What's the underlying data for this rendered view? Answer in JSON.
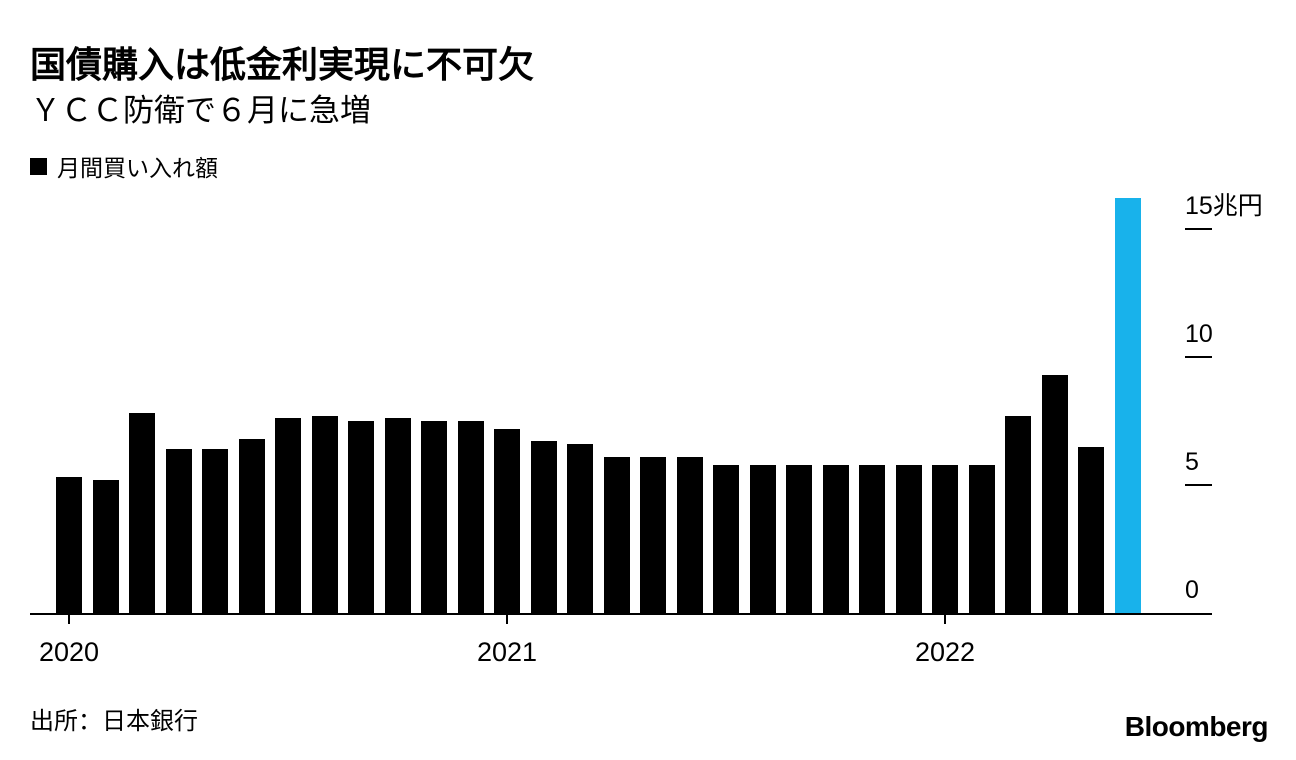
{
  "header": {
    "title": "国債購入は低金利実現に不可欠",
    "subtitle": "ＹＣＣ防衛で６月に急増"
  },
  "legend": {
    "label": "月間買い入れ額"
  },
  "footer": {
    "source": "出所：日本銀行",
    "brand": "Bloomberg"
  },
  "colors": {
    "bar": "#000000",
    "highlight": "#18b2eb",
    "axis": "#000000",
    "background": "#ffffff"
  },
  "chart_data": {
    "type": "bar",
    "title": "国債購入は低金利実現に不可欠",
    "subtitle": "ＹＣＣ防衛で６月に急増",
    "series_name": "月間買い入れ額",
    "unit": "兆円",
    "x": [
      "2020-01",
      "2020-02",
      "2020-03",
      "2020-04",
      "2020-05",
      "2020-06",
      "2020-07",
      "2020-08",
      "2020-09",
      "2020-10",
      "2020-11",
      "2020-12",
      "2021-01",
      "2021-02",
      "2021-03",
      "2021-04",
      "2021-05",
      "2021-06",
      "2021-07",
      "2021-08",
      "2021-09",
      "2021-10",
      "2021-11",
      "2021-12",
      "2022-01",
      "2022-02",
      "2022-03",
      "2022-04",
      "2022-05",
      "2022-06"
    ],
    "values": [
      5.3,
      5.2,
      7.8,
      6.4,
      6.4,
      6.8,
      7.6,
      7.7,
      7.5,
      7.6,
      7.5,
      7.5,
      7.2,
      6.7,
      6.6,
      6.1,
      6.1,
      6.1,
      5.8,
      5.8,
      5.8,
      5.8,
      5.8,
      5.8,
      5.8,
      5.8,
      7.7,
      9.3,
      6.5,
      16.2
    ],
    "highlight_index": 29,
    "ylim": [
      0,
      16.5
    ],
    "yticks": [
      {
        "value": 0,
        "label": "0"
      },
      {
        "value": 5,
        "label": "5"
      },
      {
        "value": 10,
        "label": "10"
      },
      {
        "value": 15,
        "label": "15兆円"
      }
    ],
    "xticks": [
      {
        "index": 0,
        "label": "2020"
      },
      {
        "index": 12,
        "label": "2021"
      },
      {
        "index": 24,
        "label": "2022"
      }
    ],
    "grid": false,
    "ytick_side": "right",
    "legend_position": "top-left"
  }
}
